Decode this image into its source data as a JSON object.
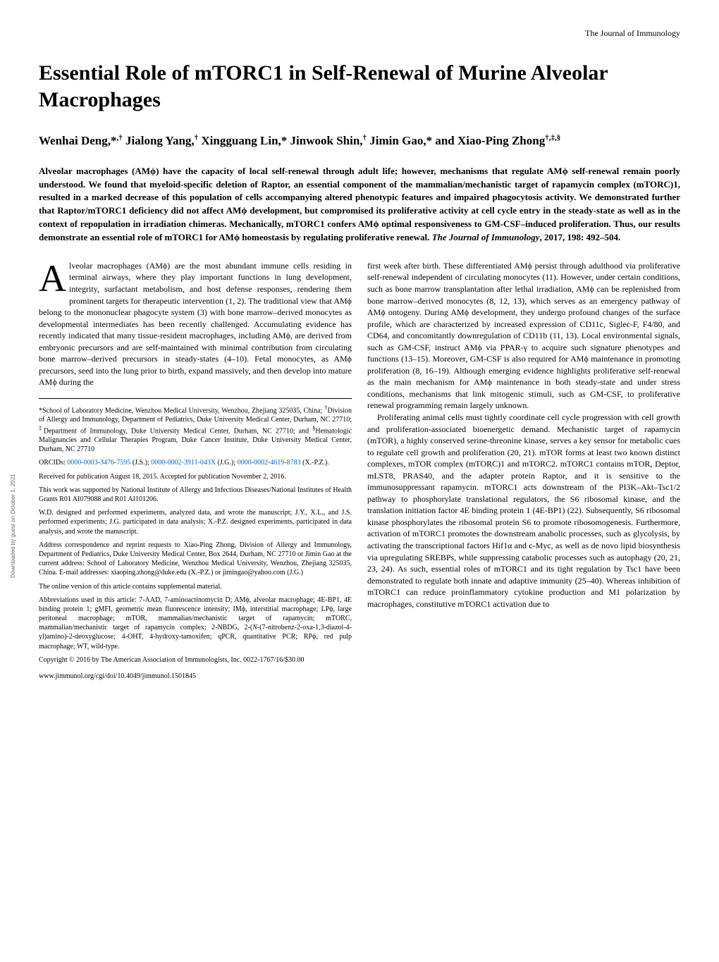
{
  "running_head": "The Journal of Immunology",
  "title": "Essential Role of mTORC1 in Self-Renewal of Murine Alveolar Macrophages",
  "authors_html": "Wenhai Deng,*<sup>,†</sup> Jialong Yang,<sup>†</sup> Xingguang Lin,* Jinwook Shin,<sup>†</sup> Jimin Gao,* and Xiao-Ping Zhong<sup>†,‡,§</sup>",
  "abstract_html": "Alveolar macrophages (AMϕ) have the capacity of local self-renewal through adult life; however, mechanisms that regulate AMϕ self-renewal remain poorly understood. We found that myeloid-specific deletion of Raptor, an essential component of the mammalian/mechanistic target of rapamycin complex (mTORC)1, resulted in a marked decrease of this population of cells accompanying altered phenotypic features and impaired phagocytosis activity. We demonstrated further that Raptor/mTORC1 deficiency did not affect AMϕ development, but compromised its proliferative activity at cell cycle entry in the steady-state as well as in the context of repopulation in irradiation chimeras. Mechanically, mTORC1 confers AMϕ optimal responsiveness to GM-CSF–induced proliferation. Thus, our results demonstrate an essential role of mTORC1 for AMϕ homeostasis by regulating proliferative renewal.  <span class=\"citation\">The Journal of Immunology</span>, 2017, 198: 492–504.",
  "left_col": {
    "dropcap": "A",
    "first_para": "lveolar macrophages (AMϕ) are the most abundant immune cells residing in terminal airways, where they play important functions in lung development, integrity, surfactant metabolism, and host defense responses, rendering them prominent targets for therapeutic intervention (1, 2). The traditional view that AMϕ belong to the mononuclear phagocyte system (3) with bone marrow–derived monocytes as developmental intermediates has been recently challenged. Accumulating evidence has recently indicated that many tissue-resident macrophages, including AMϕ, are derived from embryonic precursors and are self-maintained with minimal contribution from circulating bone marrow–derived precursors in steady-states (4–10). Fetal monocytes, as AMϕ precursors, seed into the lung prior to birth, expand massively, and then develop into mature AMϕ during the",
    "footnotes": [
      "*School of Laboratory Medicine, Wenzhou Medical University, Wenzhou, Zhejiang 325035, China; <sup>†</sup>Division of Allergy and Immunology, Department of Pediatrics, Duke University Medical Center, Durham, NC 27710; <sup>‡</sup>Department of Immunology, Duke University Medical Center, Durham, NC 27710; and <sup>§</sup>Hematologic Malignancies and Cellular Therapies Program, Duke Cancer Institute, Duke University Medical Center, Durham, NC 27710",
      "ORCIDs: <a>0000-0003-3476-7595</a> (J.S.); <a>0000-0002-3911-043X</a> (J.G.); <a>0000-0002-4619-8783</a> (X.-P.Z.).",
      "Received for publication August 18, 2015. Accepted for publication November 2, 2016.",
      "This work was supported by National Institute of Allergy and Infectious Diseases/National Institutes of Health Grants R01 AI079088 and R01 AI101206.",
      "W.D. designed and performed experiments, analyzed data, and wrote the manuscript; J.Y., X.L., and J.S. performed experiments; J.G. participated in data analysis; X.-P.Z. designed experiments, participated in data analysis, and wrote the manuscript.",
      "Address correspondence and reprint requests to Xiao-Ping Zhong, Division of Allergy and Immunology, Department of Pediatrics, Duke University Medical Center, Box 2644, Durham, NC 27710 or Jimin Gao at the current address: School of Laboratory Medicine, Wenzhou Medical University, Wenzhou, Zhejiang 325035, China. E-mail addresses: xiaoping.zhong@duke.edu (X.-P.Z.) or jimingao@yahoo.com (J.G.)",
      "The online version of this article contains supplemental material.",
      "Abbreviations used in this article: 7-AAD, 7-aminoactinomycin D; AMϕ, alveolar macrophage; 4E-BP1, 4E binding protein 1; gMFI, geometric mean fluorescence intensity; IMϕ, interstitial macrophage; LPϕ, large peritoneal macrophage; mTOR, mammalian/mechanistic target of rapamycin; mTORC, mammalian/mechanistic target of rapamycin complex; 2-NBDG, 2-(<i>N</i>-(7-nitrobenz-2-oxa-1,3-diazol-4-yl)amino)-2-deoxyglucose; 4-OHT, 4-hydroxy-tamoxifen; qPCR, quantitative PCR; RPϕ, red pulp macrophage; WT, wild-type.",
      "Copyright © 2016 by The American Association of Immunologists, Inc. 0022-1767/16/$30.00"
    ],
    "url": "www.jimmunol.org/cgi/doi/10.4049/jimmunol.1501845"
  },
  "right_col": {
    "para1": "first week after birth. These differentiated AMϕ persist through adulthood via proliferative self-renewal independent of circulating monocytes (11). However, under certain conditions, such as bone marrow transplantation after lethal irradiation, AMϕ can be replenished from bone marrow–derived monocytes (8, 12, 13), which serves as an emergency pathway of AMϕ ontogeny. During AMϕ development, they undergo profound changes of the surface profile, which are characterized by increased expression of CD11c, Siglec-F, F4/80, and CD64, and concomitantly downregulation of CD11b (11, 13). Local environmental signals, such as GM-CSF, instruct AMϕ via PPAR-γ to acquire such signature phenotypes and functions (13–15). Moreover, GM-CSF is also required for AMϕ maintenance in promoting proliferation (8, 16–19). Although emerging evidence highlights proliferative self-renewal as the main mechanism for AMϕ maintenance in both steady-state and under stress conditions, mechanisms that link mitogenic stimuli, such as GM-CSF, to proliferative renewal programming remain largely unknown.",
    "para2": "Proliferating animal cells must tightly coordinate cell cycle progression with cell growth and proliferation-associated bioenergetic demand. Mechanistic target of rapamycin (mTOR), a highly conserved serine-threonine kinase, serves a key sensor for metabolic cues to regulate cell growth and proliferation (20, 21). mTOR forms at least two known distinct complexes, mTOR complex (mTORC)1 and mTORC2. mTORC1 contains mTOR, Deptor, mLST8, PRAS40, and the adapter protein Raptor, and it is sensitive to the immunosuppressant rapamycin. mTORC1 acts downstream of the PI3K–Akt–Tsc1/2 pathway to phosphorylate translational regulators, the S6 ribosomal kinase, and the translation initiation factor 4E binding protein 1 (4E-BP1) (22). Subsequently, S6 ribosomal kinase phosphorylates the ribosomal protein S6 to promote ribosomogenesis. Furthermore, activation of mTORC1 promotes the downstream anabolic processes, such as glycolysis, by activating the transcriptional factors Hif1α and c-Myc, as well as de novo lipid biosynthesis via upregulating SREBPs, while suppressing catabolic processes such as autophagy (20, 21, 23, 24). As such, essential roles of mTORC1 and its tight regulation by Tsc1 have been demonstrated to regulate both innate and adaptive immunity (25–40). Whereas inhibition of mTORC1 can reduce proinflammatory cytokine production and M1 polarization by macrophages, constitutive mTORC1 activation due to"
  },
  "sidebar": "Downloaded by guest on October 1, 2021",
  "colors": {
    "text": "#000000",
    "background": "#ffffff",
    "link": "#0066cc",
    "sidebar": "#666666"
  },
  "typography": {
    "title_fontsize": 30,
    "authors_fontsize": 17,
    "abstract_fontsize": 13,
    "body_fontsize": 12,
    "footnote_fontsize": 10,
    "dropcap_fontsize": 54
  }
}
